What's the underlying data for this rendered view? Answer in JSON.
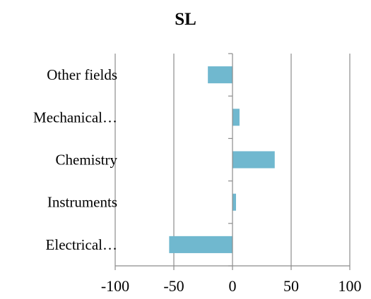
{
  "chart_data": {
    "type": "bar",
    "orientation": "horizontal",
    "title": "SL",
    "categories": [
      "Electrical…",
      "Instruments",
      "Chemistry",
      "Mechanical…",
      "Other fields"
    ],
    "values": [
      -54,
      3,
      36,
      6,
      -21
    ],
    "xlim": [
      -100,
      100
    ],
    "xticks": [
      -100,
      -50,
      0,
      50,
      100
    ],
    "xtick_labels": [
      "-100",
      "-50",
      "0",
      "50",
      "100"
    ],
    "xlabel": "",
    "ylabel": "",
    "grid": "vertical",
    "legend": "none",
    "bar_color": "#70b8cf"
  }
}
